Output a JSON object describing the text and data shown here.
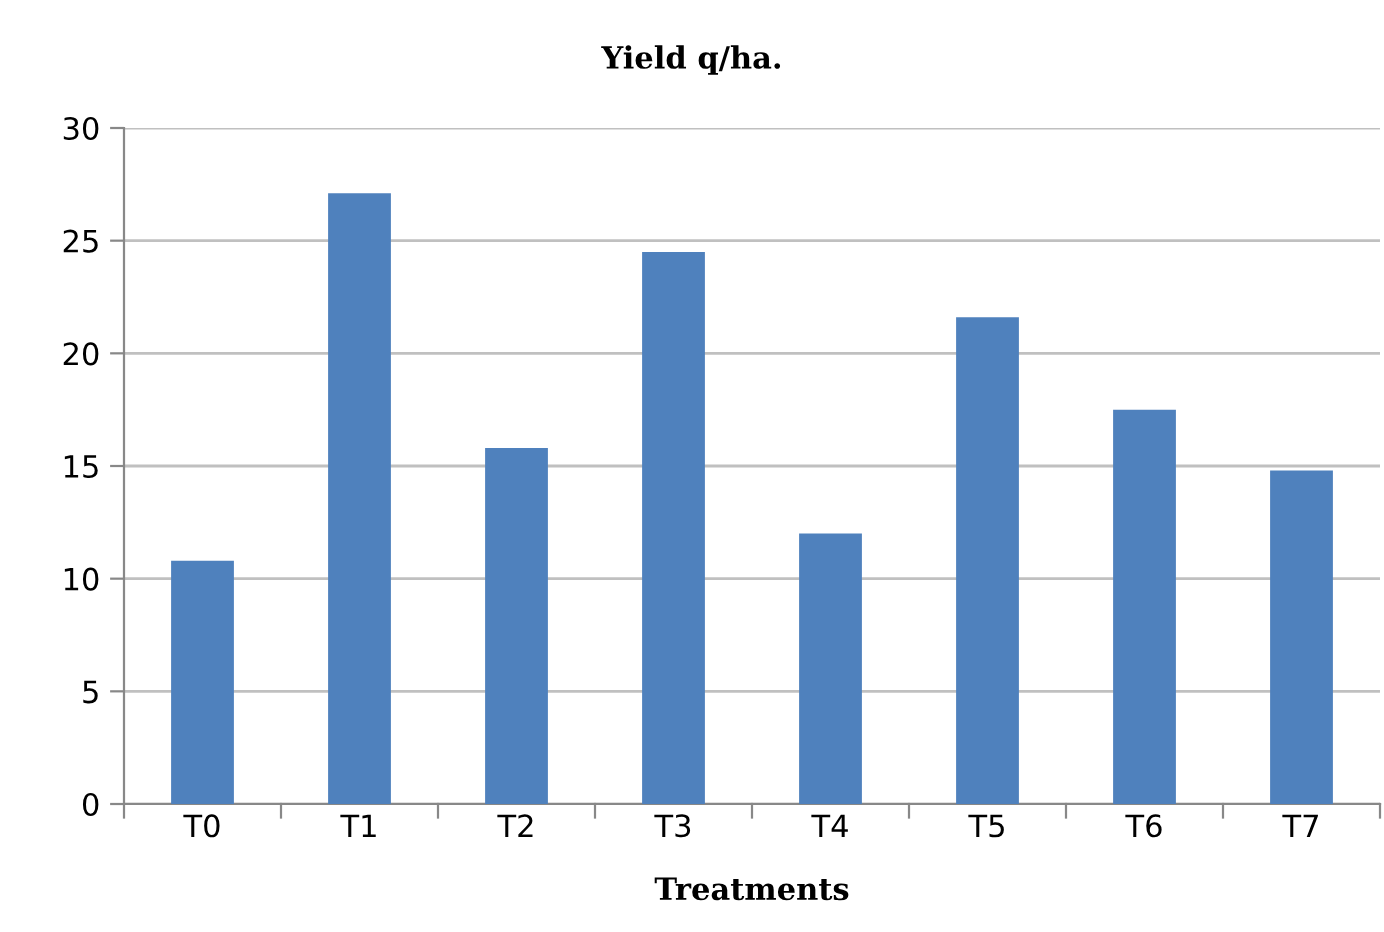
{
  "chart_data": {
    "type": "bar",
    "title": "Yield q/ha.",
    "xlabel": "Treatments",
    "categories": [
      "T0",
      "T1",
      "T2",
      "T3",
      "T4",
      "T5",
      "T6",
      "T7"
    ],
    "values": [
      10.8,
      27.1,
      15.8,
      24.5,
      12.0,
      21.6,
      17.5,
      14.8
    ],
    "color": "#4f81bd",
    "ylim": [
      0,
      30
    ],
    "yticks": [
      0,
      5,
      10,
      15,
      20,
      25,
      30
    ],
    "grid": "y"
  }
}
